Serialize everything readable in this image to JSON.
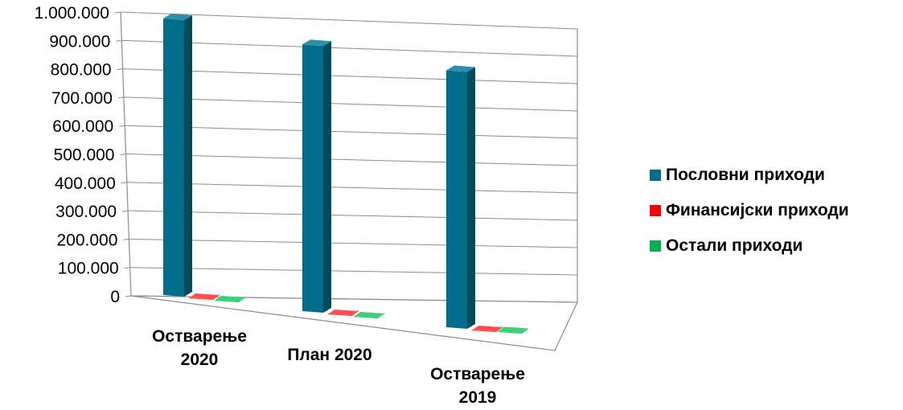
{
  "chart_data": {
    "type": "bar",
    "categories": [
      "Остварење 2020",
      "План 2020",
      "Остварење 2019"
    ],
    "series": [
      {
        "name": "Пословни приходи",
        "values": [
          1000000,
          1000000,
          1000000
        ]
      },
      {
        "name": "Финансијски приходи",
        "values": [
          5000,
          5000,
          5000
        ]
      },
      {
        "name": "Остали приходи",
        "values": [
          5000,
          5000,
          20000
        ]
      }
    ],
    "ylim": [
      0,
      1000000
    ],
    "yticks": [
      "0",
      "100.000",
      "200.000",
      "300.000",
      "400.000",
      "500.000",
      "600.000",
      "700.000",
      "800.000",
      "900.000",
      "1.000.000"
    ],
    "category_label_lines": [
      [
        "Остварење",
        "2020"
      ],
      [
        "План 2020"
      ],
      [
        "Остварење",
        "2019"
      ]
    ],
    "grid": true,
    "legend_position": "right",
    "colors": [
      "#006E8A",
      "#FF0000",
      "#00B050"
    ]
  }
}
